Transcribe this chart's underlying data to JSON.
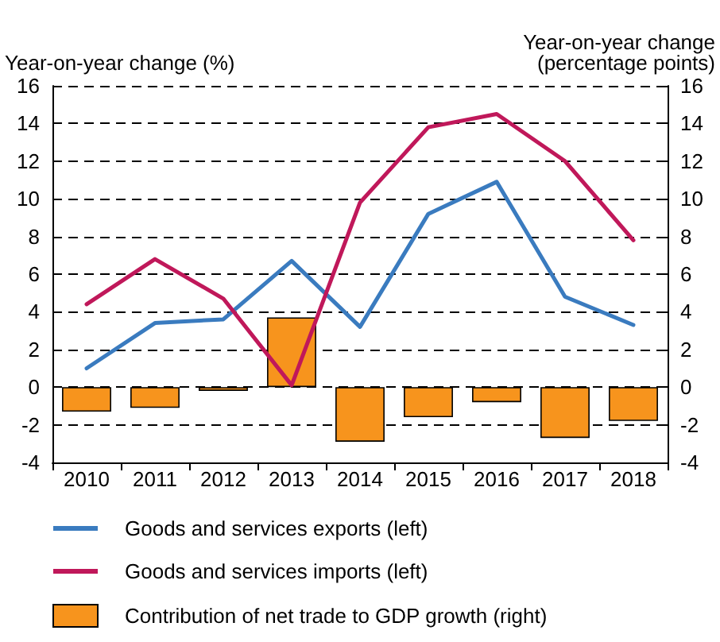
{
  "chart_data": {
    "type": "line",
    "ylabel": "Year-on-year change (%)",
    "y2label": "Year-on-year change\n(percentage points)",
    "categories": [
      "2010",
      "2011",
      "2012",
      "2013",
      "2014",
      "2015",
      "2016",
      "2017",
      "2018"
    ],
    "series": [
      {
        "name": "Goods and services exports (left)",
        "color": "#3a7bbf",
        "values": [
          1.0,
          3.4,
          3.6,
          6.7,
          3.2,
          9.2,
          10.9,
          4.8,
          3.3
        ]
      },
      {
        "name": "Goods and services imports (left)",
        "color": "#c0185a",
        "values": [
          4.4,
          6.8,
          4.7,
          0.1,
          9.8,
          13.8,
          14.5,
          12.0,
          7.8
        ]
      },
      {
        "name": "Contribution of net trade to GDP growth (right)",
        "type": "bar",
        "axis": "y2",
        "color": "#f7941d",
        "values": [
          -1.3,
          -1.1,
          -0.2,
          3.7,
          -2.9,
          -1.6,
          -0.8,
          -2.7,
          -1.8
        ]
      }
    ],
    "ylim": [
      -4,
      16
    ],
    "yticks": [
      -4,
      -2,
      0,
      2,
      4,
      6,
      8,
      10,
      12,
      14,
      16
    ],
    "y2lim": [
      -4,
      16
    ],
    "y2ticks": [
      -4,
      -2,
      0,
      2,
      4,
      6,
      8,
      10,
      12,
      14,
      16
    ],
    "grid": "y",
    "legend": "bottom",
    "marker": "none",
    "line_style": "solid"
  }
}
